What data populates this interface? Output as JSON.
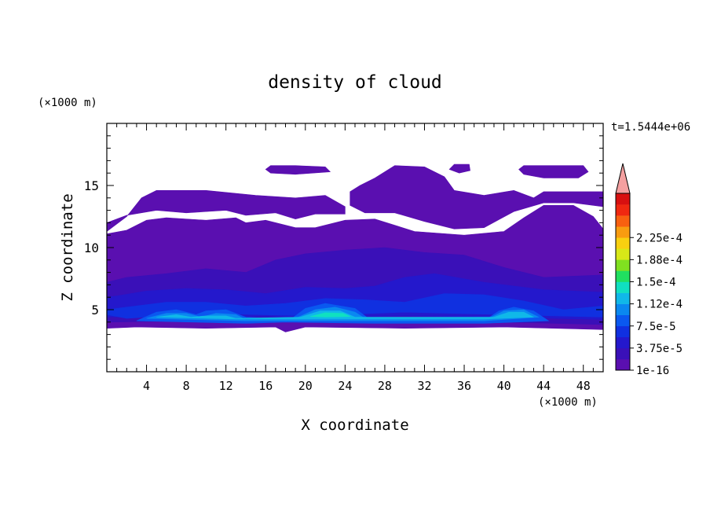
{
  "chart_data": {
    "type": "heatmap",
    "title": "density of cloud",
    "xlabel": "X coordinate",
    "ylabel": "Z coordinate",
    "x_unit": "(×1000 m)",
    "y_unit": "(×1000 m)",
    "time_label": "t=1.5444e+06",
    "xlim": [
      0,
      50
    ],
    "ylim": [
      0,
      20
    ],
    "x_ticks": [
      4,
      8,
      12,
      16,
      20,
      24,
      28,
      32,
      36,
      40,
      44,
      48
    ],
    "y_ticks": [
      5,
      10,
      15
    ],
    "colorbar": {
      "labels": [
        "1e-16",
        "3.75e-5",
        "7.5e-5",
        "1.12e-4",
        "1.5e-4",
        "1.88e-4",
        "2.25e-4"
      ],
      "colors": [
        "#5a0fb0",
        "#3a10b8",
        "#2418cc",
        "#1030e0",
        "#0a58f0",
        "#0a88f0",
        "#10b8e8",
        "#10e0c0",
        "#20e060",
        "#80e020",
        "#d8e818",
        "#f8d010",
        "#f89c10",
        "#f86010",
        "#f02810",
        "#d81010"
      ],
      "extend_color": "#f4a0a0"
    },
    "cloud_regions": [
      {
        "level": 0,
        "points": [
          [
            0,
            3.5
          ],
          [
            3,
            3.6
          ],
          [
            10,
            3.5
          ],
          [
            17,
            3.6
          ],
          [
            18,
            3.2
          ],
          [
            20,
            3.6
          ],
          [
            30,
            3.5
          ],
          [
            40,
            3.6
          ],
          [
            50,
            3.4
          ],
          [
            50,
            11.5
          ],
          [
            49,
            12.5
          ],
          [
            47,
            13.4
          ],
          [
            44,
            13.4
          ],
          [
            42,
            12.4
          ],
          [
            40,
            11.3
          ],
          [
            36,
            11.0
          ],
          [
            31,
            11.3
          ],
          [
            27,
            12.3
          ],
          [
            24,
            12.2
          ],
          [
            21,
            11.6
          ],
          [
            19,
            11.6
          ],
          [
            16,
            12.2
          ],
          [
            14,
            12.0
          ],
          [
            13,
            12.4
          ],
          [
            10,
            12.2
          ],
          [
            6,
            12.4
          ],
          [
            4,
            12.2
          ],
          [
            2,
            11.4
          ],
          [
            0,
            11.1
          ]
        ]
      },
      {
        "level": 0,
        "points": [
          [
            0,
            11.3
          ],
          [
            2,
            12.5
          ],
          [
            3.5,
            14.0
          ],
          [
            5,
            14.6
          ],
          [
            10,
            14.6
          ],
          [
            15,
            14.2
          ],
          [
            19,
            14.0
          ],
          [
            22,
            14.2
          ],
          [
            24,
            13.3
          ],
          [
            24,
            12.7
          ],
          [
            21,
            12.7
          ],
          [
            19,
            12.3
          ],
          [
            17,
            12.8
          ],
          [
            14,
            12.6
          ],
          [
            12,
            13.0
          ],
          [
            8,
            12.8
          ],
          [
            5,
            13.0
          ],
          [
            2,
            12.6
          ],
          [
            0,
            12.0
          ]
        ]
      },
      {
        "level": 0,
        "points": [
          [
            25.5,
            15.0
          ],
          [
            27,
            15.6
          ],
          [
            29,
            16.6
          ],
          [
            32,
            16.5
          ],
          [
            34,
            15.7
          ],
          [
            35,
            14.6
          ],
          [
            38,
            14.2
          ],
          [
            41,
            14.6
          ],
          [
            43,
            14.0
          ],
          [
            44,
            14.5
          ],
          [
            47,
            14.5
          ],
          [
            50,
            14.5
          ],
          [
            50,
            13.3
          ],
          [
            47,
            13.6
          ],
          [
            44,
            13.6
          ],
          [
            41,
            12.9
          ],
          [
            38,
            11.6
          ],
          [
            35,
            11.5
          ],
          [
            32,
            12.1
          ],
          [
            29,
            12.8
          ],
          [
            26,
            12.8
          ],
          [
            24.5,
            13.4
          ],
          [
            24.5,
            14.5
          ]
        ]
      },
      {
        "level": 0,
        "points": [
          [
            16,
            16.3
          ],
          [
            16.5,
            16.6
          ],
          [
            19,
            16.6
          ],
          [
            22,
            16.5
          ],
          [
            22.5,
            16.1
          ],
          [
            19,
            15.9
          ],
          [
            16.5,
            16.0
          ]
        ]
      },
      {
        "level": 0,
        "points": [
          [
            34.5,
            16.3
          ],
          [
            35,
            16.7
          ],
          [
            36.5,
            16.7
          ],
          [
            36.6,
            16.2
          ],
          [
            35.5,
            16.0
          ]
        ]
      },
      {
        "level": 0,
        "points": [
          [
            41.5,
            16.3
          ],
          [
            42,
            16.6
          ],
          [
            48,
            16.6
          ],
          [
            48.5,
            16.1
          ],
          [
            47.5,
            15.6
          ],
          [
            44,
            15.6
          ],
          [
            42,
            15.9
          ]
        ]
      },
      {
        "level": 1,
        "points": [
          [
            0,
            4.0
          ],
          [
            10,
            4.1
          ],
          [
            20,
            4.0
          ],
          [
            30,
            4.1
          ],
          [
            40,
            4.0
          ],
          [
            50,
            3.8
          ],
          [
            50,
            7.8
          ],
          [
            44,
            7.6
          ],
          [
            40,
            8.4
          ],
          [
            36,
            9.4
          ],
          [
            32,
            9.6
          ],
          [
            28,
            10.0
          ],
          [
            24,
            9.8
          ],
          [
            20,
            9.5
          ],
          [
            17,
            9.0
          ],
          [
            14,
            8.0
          ],
          [
            10,
            8.3
          ],
          [
            6,
            7.9
          ],
          [
            2,
            7.6
          ],
          [
            0,
            7.2
          ]
        ]
      },
      {
        "level": 2,
        "points": [
          [
            0,
            4.4
          ],
          [
            10,
            4.5
          ],
          [
            20,
            4.4
          ],
          [
            30,
            4.5
          ],
          [
            40,
            4.4
          ],
          [
            50,
            4.2
          ],
          [
            50,
            6.4
          ],
          [
            44,
            6.6
          ],
          [
            38,
            7.2
          ],
          [
            33,
            7.9
          ],
          [
            30,
            7.6
          ],
          [
            27,
            6.9
          ],
          [
            24,
            6.7
          ],
          [
            20,
            6.8
          ],
          [
            16,
            6.3
          ],
          [
            12,
            6.6
          ],
          [
            8,
            6.7
          ],
          [
            4,
            6.5
          ],
          [
            1,
            6.1
          ],
          [
            0,
            6.0
          ]
        ]
      },
      {
        "level": 3,
        "points": [
          [
            0,
            4.6
          ],
          [
            2,
            4.3
          ],
          [
            10,
            4.7
          ],
          [
            20,
            4.5
          ],
          [
            30,
            4.8
          ],
          [
            40,
            4.6
          ],
          [
            50,
            4.4
          ],
          [
            50,
            5.3
          ],
          [
            46,
            5.0
          ],
          [
            42,
            5.7
          ],
          [
            38,
            6.2
          ],
          [
            34,
            6.3
          ],
          [
            30,
            5.6
          ],
          [
            26,
            5.8
          ],
          [
            22,
            5.9
          ],
          [
            18,
            5.5
          ],
          [
            14,
            5.3
          ],
          [
            10,
            5.6
          ],
          [
            6,
            5.6
          ],
          [
            2,
            5.2
          ],
          [
            0,
            5.0
          ]
        ]
      },
      {
        "level": 4,
        "points": [
          [
            3,
            4.1
          ],
          [
            5,
            4.8
          ],
          [
            7,
            5.0
          ],
          [
            9,
            4.6
          ],
          [
            10,
            4.9
          ],
          [
            12,
            5.0
          ],
          [
            14,
            4.4
          ],
          [
            18.5,
            4.2
          ],
          [
            20,
            5.1
          ],
          [
            22,
            5.5
          ],
          [
            25,
            5.1
          ],
          [
            26.5,
            4.2
          ],
          [
            38,
            4.1
          ],
          [
            39.5,
            4.9
          ],
          [
            41,
            5.2
          ],
          [
            43,
            4.9
          ],
          [
            44.5,
            4.1
          ],
          [
            38,
            3.9
          ],
          [
            27,
            3.9
          ],
          [
            18,
            4.0
          ],
          [
            14,
            3.9
          ]
        ]
      },
      {
        "level": 5,
        "points": [
          [
            4,
            4.3
          ],
          [
            6,
            4.7
          ],
          [
            8,
            4.7
          ],
          [
            9.5,
            4.4
          ],
          [
            11,
            4.7
          ],
          [
            13,
            4.6
          ],
          [
            14,
            4.2
          ],
          [
            19,
            4.3
          ],
          [
            21,
            5.0
          ],
          [
            23,
            5.2
          ],
          [
            25,
            4.8
          ],
          [
            26,
            4.3
          ],
          [
            38.5,
            4.3
          ],
          [
            40,
            4.9
          ],
          [
            42,
            5.0
          ],
          [
            43.5,
            4.4
          ],
          [
            38,
            4.1
          ],
          [
            26,
            4.1
          ],
          [
            14,
            4.1
          ]
        ]
      },
      {
        "level": 6,
        "points": [
          [
            5,
            4.4
          ],
          [
            7,
            4.6
          ],
          [
            8.5,
            4.4
          ],
          [
            10,
            4.5
          ],
          [
            12,
            4.5
          ],
          [
            13,
            4.3
          ],
          [
            19.5,
            4.4
          ],
          [
            21.5,
            4.9
          ],
          [
            23.5,
            4.9
          ],
          [
            25,
            4.4
          ],
          [
            39,
            4.4
          ],
          [
            40.5,
            4.8
          ],
          [
            42,
            4.8
          ],
          [
            43,
            4.4
          ],
          [
            38,
            4.25
          ],
          [
            25,
            4.25
          ],
          [
            13,
            4.25
          ]
        ]
      },
      {
        "level": 7,
        "points": [
          [
            20.5,
            4.45
          ],
          [
            22,
            4.75
          ],
          [
            23.8,
            4.7
          ],
          [
            24.5,
            4.45
          ],
          [
            22,
            4.4
          ]
        ]
      }
    ]
  }
}
